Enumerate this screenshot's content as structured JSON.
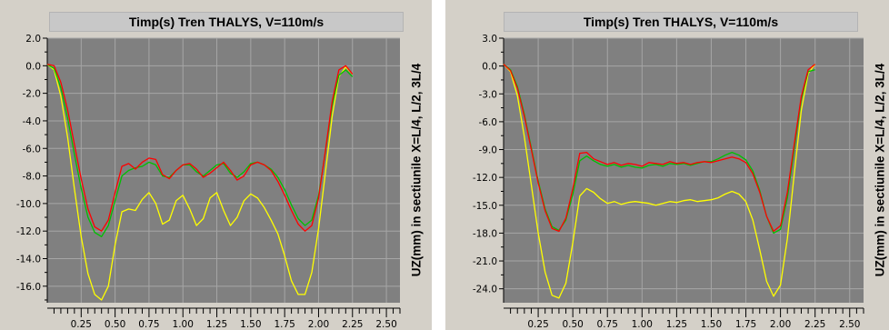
{
  "chart_data": [
    {
      "type": "line",
      "title": "Timp(s) Tren THALYS, V=110m/s",
      "ylabel": "UZ(mm) in sectiunile X=L/4, L/2, 3L/4",
      "xlabel": "",
      "xlim": [
        0,
        2.6
      ],
      "ylim": [
        -17.2,
        2.0
      ],
      "yticks": [
        "2.0",
        "0.0",
        "-2.0",
        "-4.0",
        "-6.0",
        "-8.0",
        "-10.0",
        "-12.0",
        "-14.0",
        "-16.0"
      ],
      "ytick_values": [
        2,
        0,
        -2,
        -4,
        -6,
        -8,
        -10,
        -12,
        -14,
        -16
      ],
      "xticks": [
        "0.25",
        "0.50",
        "0.75",
        "1.00",
        "1.25",
        "1.50",
        "1.75",
        "2.00",
        "2.25",
        "2.50"
      ],
      "xtick_values": [
        0.25,
        0.5,
        0.75,
        1.0,
        1.25,
        1.5,
        1.75,
        2.0,
        2.25,
        2.5
      ],
      "grid": true,
      "colors": {
        "plot_bg": "#808080",
        "grid": "#a6a6a6",
        "axis": "#000000"
      },
      "series": [
        {
          "color": "#ff0000",
          "x": [
            0.0,
            0.05,
            0.1,
            0.15,
            0.2,
            0.25,
            0.3,
            0.35,
            0.4,
            0.45,
            0.5,
            0.55,
            0.6,
            0.65,
            0.7,
            0.75,
            0.8,
            0.85,
            0.9,
            0.95,
            1.0,
            1.05,
            1.1,
            1.15,
            1.2,
            1.25,
            1.3,
            1.35,
            1.4,
            1.45,
            1.5,
            1.55,
            1.6,
            1.65,
            1.7,
            1.75,
            1.8,
            1.85,
            1.9,
            1.95,
            2.0,
            2.05,
            2.1,
            2.15,
            2.2,
            2.25
          ],
          "y": [
            0.1,
            0.0,
            -1.2,
            -3.2,
            -5.7,
            -8.2,
            -10.4,
            -11.7,
            -12.0,
            -11.2,
            -9.2,
            -7.3,
            -7.1,
            -7.5,
            -7.0,
            -6.7,
            -6.8,
            -7.9,
            -8.2,
            -7.6,
            -7.2,
            -7.1,
            -7.5,
            -8.1,
            -7.8,
            -7.4,
            -7.0,
            -7.6,
            -8.3,
            -8.0,
            -7.2,
            -7.0,
            -7.2,
            -7.6,
            -8.4,
            -9.4,
            -10.5,
            -11.5,
            -12.0,
            -11.6,
            -9.6,
            -6.2,
            -2.6,
            -0.3,
            0.0,
            -0.6
          ]
        },
        {
          "color": "#00c000",
          "x": [
            0.0,
            0.05,
            0.1,
            0.15,
            0.2,
            0.25,
            0.3,
            0.35,
            0.4,
            0.45,
            0.5,
            0.55,
            0.6,
            0.65,
            0.7,
            0.75,
            0.8,
            0.85,
            0.9,
            0.95,
            1.0,
            1.05,
            1.1,
            1.15,
            1.2,
            1.25,
            1.3,
            1.35,
            1.4,
            1.45,
            1.5,
            1.55,
            1.6,
            1.65,
            1.7,
            1.75,
            1.8,
            1.85,
            1.9,
            1.95,
            2.0,
            2.05,
            2.1,
            2.15,
            2.2,
            2.25
          ],
          "y": [
            0.1,
            -0.2,
            -1.6,
            -3.8,
            -6.4,
            -8.9,
            -11.0,
            -12.1,
            -12.4,
            -11.6,
            -9.8,
            -8.0,
            -7.6,
            -7.4,
            -7.3,
            -7.0,
            -7.2,
            -8.0,
            -8.1,
            -7.6,
            -7.2,
            -7.2,
            -7.7,
            -8.0,
            -7.6,
            -7.2,
            -7.1,
            -7.8,
            -8.1,
            -7.7,
            -7.1,
            -7.0,
            -7.2,
            -7.5,
            -8.1,
            -9.0,
            -10.1,
            -11.1,
            -11.6,
            -11.2,
            -9.4,
            -6.3,
            -2.9,
            -0.7,
            -0.3,
            -0.8
          ]
        },
        {
          "color": "#ffff00",
          "x": [
            0.0,
            0.05,
            0.1,
            0.15,
            0.2,
            0.25,
            0.3,
            0.35,
            0.4,
            0.45,
            0.5,
            0.55,
            0.6,
            0.65,
            0.7,
            0.75,
            0.8,
            0.85,
            0.9,
            0.95,
            1.0,
            1.05,
            1.1,
            1.15,
            1.2,
            1.25,
            1.3,
            1.35,
            1.4,
            1.45,
            1.5,
            1.55,
            1.6,
            1.65,
            1.7,
            1.75,
            1.8,
            1.85,
            1.9,
            1.95,
            2.0,
            2.05,
            2.1,
            2.15,
            2.2,
            2.25
          ],
          "y": [
            0.1,
            -0.3,
            -2.2,
            -5.2,
            -8.9,
            -12.4,
            -15.1,
            -16.6,
            -17.0,
            -16.0,
            -13.0,
            -10.6,
            -10.4,
            -10.5,
            -9.7,
            -9.2,
            -10.0,
            -11.5,
            -11.2,
            -9.8,
            -9.4,
            -10.4,
            -11.6,
            -11.1,
            -9.6,
            -9.2,
            -10.5,
            -11.6,
            -11.0,
            -9.8,
            -9.3,
            -9.6,
            -10.3,
            -11.2,
            -12.2,
            -13.8,
            -15.6,
            -16.6,
            -16.6,
            -15.0,
            -11.8,
            -7.8,
            -3.7,
            -0.8,
            -0.1,
            -0.6
          ]
        }
      ]
    },
    {
      "type": "line",
      "title": "Timp(s)  Tren THALYS, V=110m/s",
      "ylabel": "UZ(mm) in sectiunile X=L/4, L/2, 3L/4",
      "xlabel": "",
      "xlim": [
        0,
        2.6
      ],
      "ylim": [
        -25.5,
        3.0
      ],
      "yticks": [
        "3.0",
        "0.0",
        "-3.0",
        "-6.0",
        "-9.0",
        "-12.0",
        "-15.0",
        "-18.0",
        "-21.0",
        "-24.0"
      ],
      "ytick_values": [
        3,
        0,
        -3,
        -6,
        -9,
        -12,
        -15,
        -18,
        -21,
        -24
      ],
      "xticks": [
        "0.25",
        "0.50",
        "0.75",
        "1.00",
        "1.25",
        "1.50",
        "1.75",
        "2.00",
        "2.25",
        "2.50"
      ],
      "xtick_values": [
        0.25,
        0.5,
        0.75,
        1.0,
        1.25,
        1.5,
        1.75,
        2.0,
        2.25,
        2.5
      ],
      "grid": true,
      "colors": {
        "plot_bg": "#808080",
        "grid": "#a6a6a6",
        "axis": "#000000"
      },
      "series": [
        {
          "color": "#ff0000",
          "x": [
            0.0,
            0.05,
            0.1,
            0.15,
            0.2,
            0.25,
            0.3,
            0.35,
            0.4,
            0.45,
            0.5,
            0.55,
            0.6,
            0.65,
            0.7,
            0.75,
            0.8,
            0.85,
            0.9,
            0.95,
            1.0,
            1.05,
            1.1,
            1.15,
            1.2,
            1.25,
            1.3,
            1.35,
            1.4,
            1.45,
            1.5,
            1.55,
            1.6,
            1.65,
            1.7,
            1.75,
            1.8,
            1.85,
            1.9,
            1.95,
            2.0,
            2.05,
            2.1,
            2.15,
            2.2,
            2.25
          ],
          "y": [
            0.2,
            -0.5,
            -2.4,
            -5.4,
            -9.0,
            -12.6,
            -15.6,
            -17.5,
            -17.8,
            -16.4,
            -13.2,
            -9.4,
            -9.3,
            -10.0,
            -10.3,
            -10.6,
            -10.4,
            -10.7,
            -10.5,
            -10.6,
            -10.8,
            -10.4,
            -10.5,
            -10.6,
            -10.3,
            -10.5,
            -10.4,
            -10.6,
            -10.4,
            -10.3,
            -10.4,
            -10.2,
            -10.0,
            -9.8,
            -10.0,
            -10.4,
            -11.6,
            -13.6,
            -16.2,
            -17.8,
            -17.2,
            -13.6,
            -8.4,
            -3.3,
            -0.4,
            0.2
          ]
        },
        {
          "color": "#00c000",
          "x": [
            0.0,
            0.05,
            0.1,
            0.15,
            0.2,
            0.25,
            0.3,
            0.35,
            0.4,
            0.45,
            0.5,
            0.55,
            0.6,
            0.65,
            0.7,
            0.75,
            0.8,
            0.85,
            0.9,
            0.95,
            1.0,
            1.05,
            1.1,
            1.15,
            1.2,
            1.25,
            1.3,
            1.35,
            1.4,
            1.45,
            1.5,
            1.55,
            1.6,
            1.65,
            1.7,
            1.75,
            1.8,
            1.85,
            1.9,
            1.95,
            2.0,
            2.05,
            2.1,
            2.15,
            2.2,
            2.25
          ],
          "y": [
            0.2,
            -0.4,
            -2.2,
            -5.2,
            -8.8,
            -12.4,
            -15.4,
            -17.3,
            -17.7,
            -16.6,
            -13.8,
            -10.2,
            -9.7,
            -10.2,
            -10.6,
            -10.8,
            -10.6,
            -10.9,
            -10.7,
            -10.9,
            -11.0,
            -10.7,
            -10.6,
            -10.8,
            -10.5,
            -10.6,
            -10.5,
            -10.7,
            -10.5,
            -10.3,
            -10.3,
            -10.0,
            -9.6,
            -9.3,
            -9.6,
            -10.1,
            -11.3,
            -13.4,
            -16.2,
            -18.0,
            -17.6,
            -14.2,
            -8.9,
            -3.6,
            -0.6,
            -0.4
          ]
        },
        {
          "color": "#ffff00",
          "x": [
            0.0,
            0.05,
            0.1,
            0.15,
            0.2,
            0.25,
            0.3,
            0.35,
            0.4,
            0.45,
            0.5,
            0.55,
            0.6,
            0.65,
            0.7,
            0.75,
            0.8,
            0.85,
            0.9,
            0.95,
            1.0,
            1.05,
            1.1,
            1.15,
            1.2,
            1.25,
            1.3,
            1.35,
            1.4,
            1.45,
            1.5,
            1.55,
            1.6,
            1.65,
            1.7,
            1.75,
            1.8,
            1.85,
            1.9,
            1.95,
            2.0,
            2.05,
            2.1,
            2.15,
            2.2,
            2.25
          ],
          "y": [
            0.2,
            -0.6,
            -3.2,
            -7.6,
            -12.8,
            -18.0,
            -22.2,
            -24.7,
            -25.0,
            -23.4,
            -19.0,
            -14.0,
            -13.2,
            -13.6,
            -14.3,
            -14.8,
            -14.6,
            -14.9,
            -14.7,
            -14.6,
            -14.7,
            -14.8,
            -15.0,
            -14.8,
            -14.6,
            -14.7,
            -14.5,
            -14.4,
            -14.6,
            -14.5,
            -14.4,
            -14.2,
            -13.8,
            -13.5,
            -13.8,
            -14.6,
            -16.6,
            -19.8,
            -23.2,
            -24.8,
            -23.6,
            -18.6,
            -11.6,
            -4.8,
            -0.8,
            0.2
          ]
        }
      ]
    }
  ]
}
